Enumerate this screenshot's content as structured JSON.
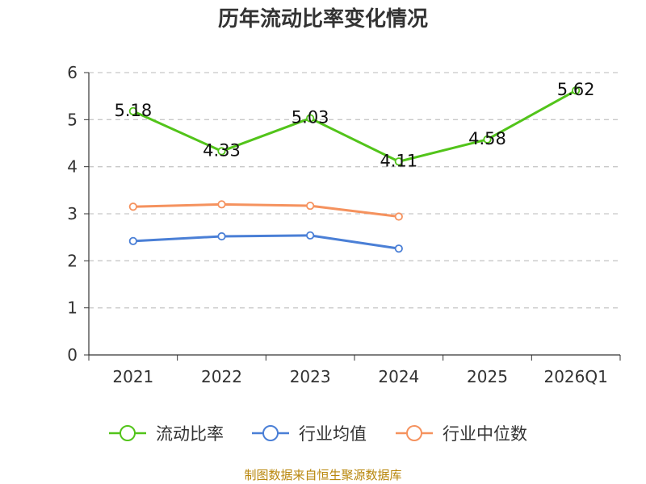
{
  "chart_data": {
    "type": "line",
    "title": "历年流动比率变化情况",
    "categories": [
      "2021",
      "2022",
      "2023",
      "2024",
      "2025",
      "2026Q1"
    ],
    "ylim": [
      0,
      6
    ],
    "yticks": [
      "0",
      "1",
      "2",
      "3",
      "4",
      "5",
      "6"
    ],
    "grid": true,
    "legend_position": "bottom",
    "series": [
      {
        "name": "流动比率",
        "color": "#52c41a",
        "values": [
          5.18,
          4.33,
          5.03,
          4.11,
          4.58,
          5.62
        ],
        "labels": [
          "5.18",
          "4.33",
          "5.03",
          "4.11",
          "4.58",
          "5.62"
        ]
      },
      {
        "name": "行业均值",
        "color": "#4a7fd6",
        "values": [
          2.42,
          2.52,
          2.54,
          2.26,
          null,
          null
        ]
      },
      {
        "name": "行业中位数",
        "color": "#f5925e",
        "values": [
          3.15,
          3.2,
          3.17,
          2.94,
          null,
          null
        ]
      }
    ],
    "source": "制图数据来自恒生聚源数据库"
  }
}
